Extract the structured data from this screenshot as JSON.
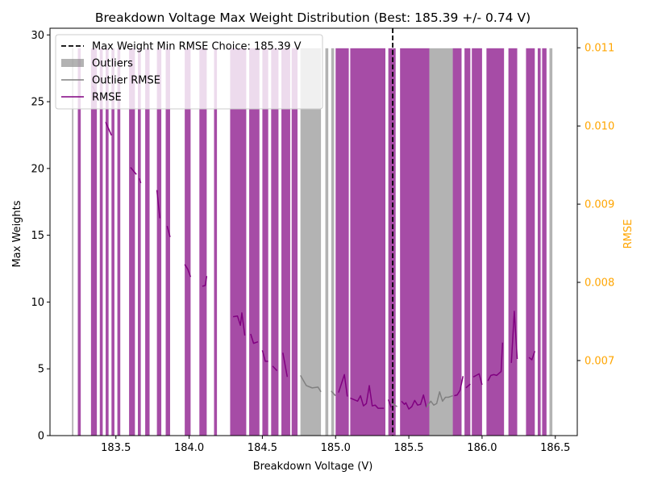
{
  "chart_data": {
    "type": "bar",
    "title": "Breakdown Voltage Max Weight Distribution (Best: 185.39 +/- 0.74 V)",
    "xlabel": "Breakdown Voltage (V)",
    "ylabel": "Max Weights",
    "y2label": "RMSE",
    "xlim": [
      183.05,
      186.65
    ],
    "ylim": [
      0,
      30.5
    ],
    "y2lim": [
      0.00604,
      0.01125
    ],
    "x_ticks": [
      "183.5",
      "184.0",
      "184.5",
      "185.0",
      "185.5",
      "186.0",
      "186.5"
    ],
    "y_ticks": [
      "0",
      "5",
      "10",
      "15",
      "20",
      "25",
      "30"
    ],
    "y2_ticks": [
      "0.007",
      "0.008",
      "0.009",
      "0.010",
      "0.011"
    ],
    "grid": false,
    "legend_position": "upper-left",
    "colors": {
      "main": "#800080",
      "outlier": "#808080",
      "best_line": "#000000",
      "right_axis": "#ffa500"
    },
    "best_choice": {
      "x": 185.39,
      "label": "Max Weight Min RMSE Choice: 185.39 V"
    },
    "legend": [
      {
        "label": "Max Weight Min RMSE Choice: 185.39 V",
        "kind": "dashed-line"
      },
      {
        "label": "Outliers",
        "kind": "outlier-bar"
      },
      {
        "label": "Outlier RMSE",
        "kind": "outlier-line"
      },
      {
        "label": "RMSE",
        "kind": "main-line"
      }
    ],
    "series": [
      {
        "name": "Max Weights",
        "kind": "bars",
        "bar_value": 29,
        "bars": [
          [
            183.2,
            183.21,
            1
          ],
          [
            183.24,
            183.26,
            0
          ],
          [
            183.33,
            183.37,
            0
          ],
          [
            183.39,
            183.41,
            0
          ],
          [
            183.43,
            183.45,
            0
          ],
          [
            183.47,
            183.49,
            0
          ],
          [
            183.51,
            183.53,
            0
          ],
          [
            183.59,
            183.63,
            0
          ],
          [
            183.65,
            183.67,
            0
          ],
          [
            183.7,
            183.73,
            0
          ],
          [
            183.78,
            183.81,
            0
          ],
          [
            183.84,
            183.87,
            0
          ],
          [
            183.97,
            184.01,
            0
          ],
          [
            184.07,
            184.12,
            0
          ],
          [
            184.17,
            184.19,
            0
          ],
          [
            184.28,
            184.39,
            0
          ],
          [
            184.41,
            184.48,
            0
          ],
          [
            184.5,
            184.54,
            0
          ],
          [
            184.56,
            184.61,
            0
          ],
          [
            184.63,
            184.69,
            0
          ],
          [
            184.7,
            184.74,
            0
          ],
          [
            184.76,
            184.9,
            1
          ],
          [
            184.93,
            184.95,
            1
          ],
          [
            184.97,
            184.99,
            1
          ],
          [
            185.0,
            185.09,
            0
          ],
          [
            185.1,
            185.34,
            0
          ],
          [
            185.36,
            185.41,
            0
          ],
          [
            185.44,
            185.64,
            0
          ],
          [
            185.64,
            185.8,
            1
          ],
          [
            185.8,
            185.86,
            0
          ],
          [
            185.88,
            185.92,
            0
          ],
          [
            185.93,
            186.0,
            0
          ],
          [
            186.03,
            186.15,
            0
          ],
          [
            186.18,
            186.24,
            0
          ],
          [
            186.3,
            186.36,
            0
          ],
          [
            186.38,
            186.4,
            0
          ],
          [
            186.41,
            186.44,
            0
          ],
          [
            186.46,
            186.48,
            1
          ]
        ]
      },
      {
        "name": "RMSE",
        "kind": "line",
        "segments": [
          [
            [
              183.34,
              0.01051
            ],
            [
              183.38,
              0.01035
            ]
          ],
          [
            [
              183.43,
              0.01005
            ],
            [
              183.47,
              0.00988
            ]
          ],
          [
            [
              183.6,
              0.00947
            ],
            [
              183.64,
              0.00938
            ]
          ],
          [
            [
              183.66,
              0.00933
            ],
            [
              183.67,
              0.00927
            ]
          ],
          [
            [
              183.78,
              0.00918
            ],
            [
              183.8,
              0.00882
            ]
          ],
          [
            [
              183.85,
              0.00872
            ],
            [
              183.87,
              0.00858
            ]
          ],
          [
            [
              183.97,
              0.00823
            ],
            [
              183.99,
              0.00817
            ],
            [
              184.01,
              0.00807
            ]
          ],
          [
            [
              184.09,
              0.00795
            ],
            [
              184.11,
              0.00796
            ],
            [
              184.12,
              0.00808
            ]
          ],
          [
            [
              184.3,
              0.00756
            ],
            [
              184.33,
              0.00757
            ],
            [
              184.35,
              0.00745
            ],
            [
              184.36,
              0.00761
            ],
            [
              184.38,
              0.00732
            ]
          ],
          [
            [
              184.42,
              0.00734
            ],
            [
              184.44,
              0.00722
            ],
            [
              184.47,
              0.00724
            ]
          ],
          [
            [
              184.5,
              0.00713
            ],
            [
              184.52,
              0.00699
            ],
            [
              184.54,
              0.00699
            ]
          ],
          [
            [
              184.57,
              0.00693
            ],
            [
              184.6,
              0.00687
            ]
          ],
          [
            [
              184.64,
              0.0071
            ],
            [
              184.67,
              0.00679
            ]
          ],
          [
            [
              185.02,
              0.00659
            ],
            [
              185.06,
              0.00682
            ],
            [
              185.08,
              0.00654
            ]
          ],
          [
            [
              185.1,
              0.00652
            ],
            [
              185.15,
              0.00648
            ],
            [
              185.17,
              0.00655
            ],
            [
              185.19,
              0.00642
            ],
            [
              185.21,
              0.00645
            ],
            [
              185.23,
              0.00668
            ],
            [
              185.25,
              0.00642
            ],
            [
              185.27,
              0.00643
            ],
            [
              185.29,
              0.00639
            ],
            [
              185.33,
              0.00639
            ]
          ],
          [
            [
              185.36,
              0.0065
            ],
            [
              185.38,
              0.0064
            ]
          ],
          [
            [
              185.45,
              0.00648
            ],
            [
              185.47,
              0.00644
            ],
            [
              185.48,
              0.00646
            ],
            [
              185.5,
              0.00638
            ],
            [
              185.52,
              0.00641
            ],
            [
              185.54,
              0.00649
            ],
            [
              185.56,
              0.00643
            ],
            [
              185.58,
              0.00644
            ],
            [
              185.6,
              0.00656
            ],
            [
              185.62,
              0.0064
            ]
          ],
          [
            [
              185.81,
              0.00655
            ],
            [
              185.83,
              0.00656
            ],
            [
              185.85,
              0.00662
            ],
            [
              185.87,
              0.0068
            ]
          ],
          [
            [
              185.89,
              0.00665
            ],
            [
              185.92,
              0.0067
            ]
          ],
          [
            [
              185.94,
              0.00679
            ],
            [
              185.96,
              0.00681
            ],
            [
              185.98,
              0.00683
            ],
            [
              186.0,
              0.00669
            ]
          ],
          [
            [
              186.04,
              0.00674
            ],
            [
              186.06,
              0.00681
            ],
            [
              186.08,
              0.00682
            ],
            [
              186.1,
              0.00681
            ],
            [
              186.13,
              0.00686
            ],
            [
              186.14,
              0.00723
            ]
          ],
          [
            [
              186.2,
              0.00697
            ],
            [
              186.22,
              0.00763
            ],
            [
              186.24,
              0.00702
            ]
          ],
          [
            [
              186.32,
              0.00704
            ],
            [
              186.34,
              0.00701
            ],
            [
              186.36,
              0.00712
            ]
          ]
        ]
      },
      {
        "name": "Outlier RMSE",
        "kind": "line",
        "segments": [
          [
            [
              184.76,
              0.00681
            ],
            [
              184.8,
              0.00668
            ],
            [
              184.84,
              0.00665
            ],
            [
              184.88,
              0.00666
            ],
            [
              184.9,
              0.0066
            ]
          ],
          [
            [
              184.97,
              0.00661
            ],
            [
              185.0,
              0.00655
            ]
          ],
          [
            [
              185.38,
              0.00646
            ],
            [
              185.42,
              0.00641
            ]
          ],
          [
            [
              185.62,
              0.0064
            ],
            [
              185.65,
              0.00648
            ],
            [
              185.67,
              0.00643
            ],
            [
              185.69,
              0.00645
            ],
            [
              185.71,
              0.0066
            ],
            [
              185.73,
              0.00648
            ],
            [
              185.75,
              0.00653
            ],
            [
              185.77,
              0.00653
            ],
            [
              185.8,
              0.00655
            ]
          ]
        ]
      }
    ]
  }
}
